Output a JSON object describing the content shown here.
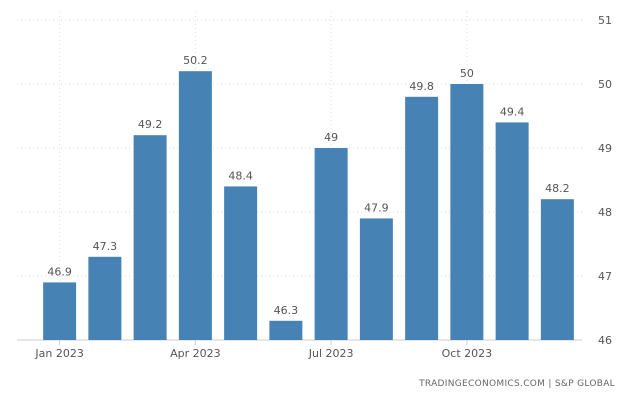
{
  "chart_data": {
    "type": "bar",
    "title": "",
    "xlabel": "",
    "ylabel": "",
    "categories": [
      "Jan 2023",
      "Feb 2023",
      "Mar 2023",
      "Apr 2023",
      "May 2023",
      "Jun 2023",
      "Jul 2023",
      "Aug 2023",
      "Sep 2023",
      "Oct 2023",
      "Nov 2023",
      "Dec 2023"
    ],
    "values": [
      46.9,
      47.3,
      49.2,
      50.2,
      48.4,
      46.3,
      49,
      47.9,
      49.8,
      50,
      49.4,
      48.2
    ],
    "value_labels": [
      "46.9",
      "47.3",
      "49.2",
      "50.2",
      "48.4",
      "46.3",
      "49",
      "47.9",
      "49.8",
      "50",
      "49.4",
      "48.2"
    ],
    "ylim": [
      46,
      51
    ],
    "y_ticks": [
      "46",
      "47",
      "48",
      "49",
      "50",
      "51"
    ],
    "x_tick_labels": [
      {
        "index": 0,
        "label": "Jan 2023"
      },
      {
        "index": 3,
        "label": "Apr 2023"
      },
      {
        "index": 6,
        "label": "Jul 2023"
      },
      {
        "index": 9,
        "label": "Oct 2023"
      }
    ],
    "y_axis_side": "right",
    "grid": true,
    "bar_color": "#4682b4"
  },
  "footer": {
    "source": "TRADINGECONOMICS.COM | S&P GLOBAL"
  }
}
